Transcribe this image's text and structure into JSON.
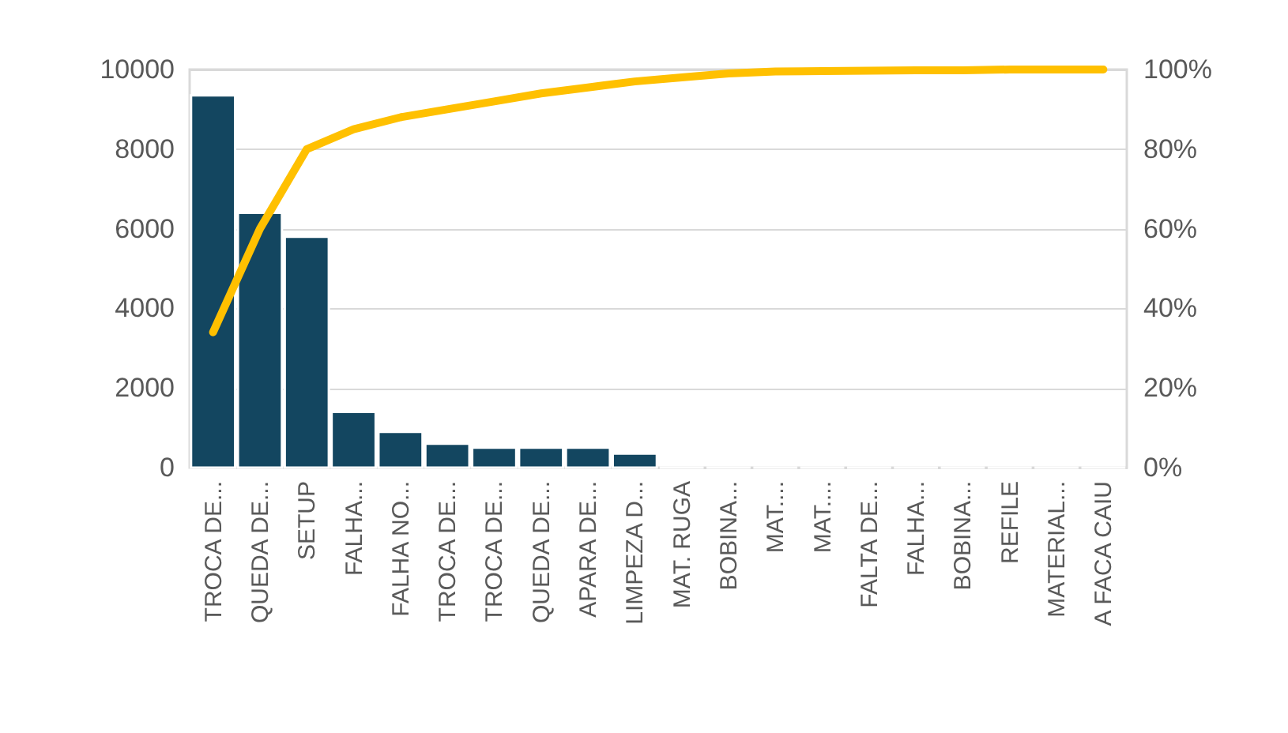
{
  "chart_data": {
    "type": "bar",
    "categories": [
      "TROCA DE...",
      "QUEDA DE...",
      "SETUP",
      "FALHA...",
      "FALHA NO...",
      "TROCA DE...",
      "TROCA DE...",
      "QUEDA DE...",
      "APARA DE...",
      "LIMPEZA D...",
      "MAT. RUGA",
      "BOBINA...",
      "MAT....",
      "MAT....",
      "FALTA DE...",
      "FALHA...",
      "BOBINA...",
      "REFILE",
      "MATERIAL...",
      "A FACA CAIU"
    ],
    "series": [
      {
        "color": "#134660",
        "values": [
          9350,
          6400,
          5800,
          1400,
          900,
          600,
          500,
          500,
          500,
          350,
          0,
          0,
          0,
          0,
          0,
          0,
          0,
          0,
          0,
          0
        ]
      },
      {
        "type": "line",
        "axis": "y2",
        "color": "#ffc000",
        "values": [
          34,
          60,
          80,
          85,
          88,
          90,
          92,
          94,
          95.5,
          97,
          98,
          99,
          99.5,
          99.6,
          99.7,
          99.8,
          99.8,
          100,
          100,
          100
        ]
      }
    ],
    "ylim": [
      0,
      10000
    ],
    "yticks": [
      0,
      2000,
      4000,
      6000,
      8000,
      10000
    ],
    "y2lim": [
      0,
      100
    ],
    "y2ticks": [
      {
        "value": 0,
        "label": "0%"
      },
      {
        "value": 20,
        "label": "20%"
      },
      {
        "value": 40,
        "label": "40%"
      },
      {
        "value": 60,
        "label": "60%"
      },
      {
        "value": 80,
        "label": "80%"
      },
      {
        "value": 100,
        "label": "100%"
      }
    ],
    "grid": "y",
    "marker": "none"
  }
}
